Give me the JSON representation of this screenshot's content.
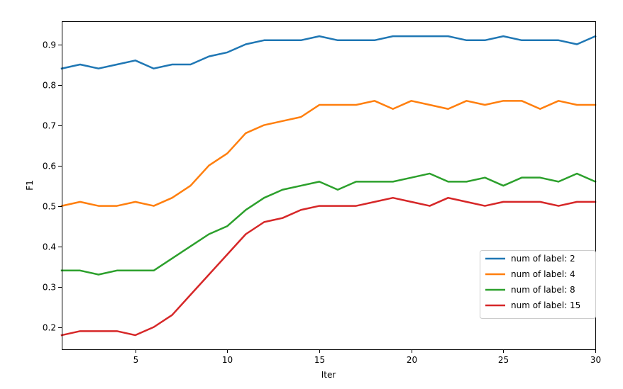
{
  "chart_data": {
    "type": "line",
    "title": "",
    "xlabel": "Iter",
    "ylabel": "F1",
    "xlim": [
      1,
      30
    ],
    "ylim": [
      0.145,
      0.957
    ],
    "xticks": [
      5,
      10,
      15,
      20,
      25,
      30
    ],
    "yticks": [
      0.2,
      0.3,
      0.4,
      0.5,
      0.6,
      0.7,
      0.8,
      0.9
    ],
    "grid": false,
    "legend": "center-right",
    "x": [
      1,
      2,
      3,
      4,
      5,
      6,
      7,
      8,
      9,
      10,
      11,
      12,
      13,
      14,
      15,
      16,
      17,
      18,
      19,
      20,
      21,
      22,
      23,
      24,
      25,
      26,
      27,
      28,
      29,
      30
    ],
    "series": [
      {
        "name": "num of label: 2",
        "color": "#1f77b4",
        "values": [
          0.84,
          0.85,
          0.84,
          0.85,
          0.86,
          0.84,
          0.85,
          0.85,
          0.87,
          0.88,
          0.9,
          0.91,
          0.91,
          0.91,
          0.92,
          0.91,
          0.91,
          0.91,
          0.92,
          0.92,
          0.92,
          0.92,
          0.91,
          0.91,
          0.92,
          0.91,
          0.91,
          0.91,
          0.9,
          0.92
        ]
      },
      {
        "name": "num of label: 4",
        "color": "#ff7f0e",
        "values": [
          0.5,
          0.51,
          0.5,
          0.5,
          0.51,
          0.5,
          0.52,
          0.55,
          0.6,
          0.63,
          0.68,
          0.7,
          0.71,
          0.72,
          0.75,
          0.75,
          0.75,
          0.76,
          0.74,
          0.76,
          0.75,
          0.74,
          0.76,
          0.75,
          0.76,
          0.76,
          0.74,
          0.76,
          0.75,
          0.75
        ]
      },
      {
        "name": "num of label: 8",
        "color": "#2ca02c",
        "values": [
          0.34,
          0.34,
          0.33,
          0.34,
          0.34,
          0.34,
          0.37,
          0.4,
          0.43,
          0.45,
          0.49,
          0.52,
          0.54,
          0.55,
          0.56,
          0.54,
          0.56,
          0.56,
          0.56,
          0.57,
          0.58,
          0.56,
          0.56,
          0.57,
          0.55,
          0.57,
          0.57,
          0.56,
          0.58,
          0.56
        ]
      },
      {
        "name": "num of label: 15",
        "color": "#d62728",
        "values": [
          0.18,
          0.19,
          0.19,
          0.19,
          0.18,
          0.2,
          0.23,
          0.28,
          0.33,
          0.38,
          0.43,
          0.46,
          0.47,
          0.49,
          0.5,
          0.5,
          0.5,
          0.51,
          0.52,
          0.51,
          0.5,
          0.52,
          0.51,
          0.5,
          0.51,
          0.51,
          0.51,
          0.5,
          0.51,
          0.51
        ]
      }
    ]
  }
}
